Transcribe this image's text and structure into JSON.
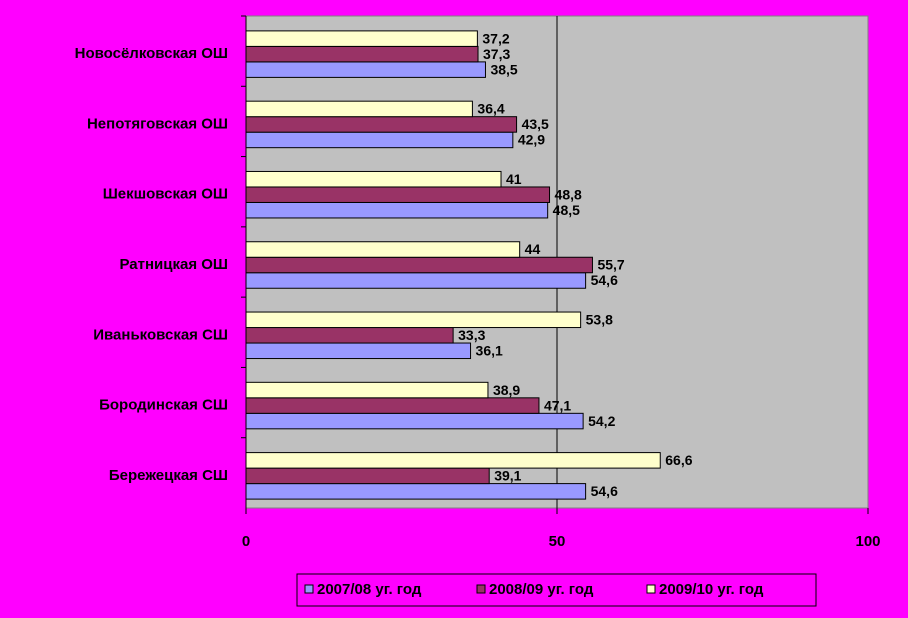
{
  "chart_data": {
    "type": "barh",
    "categories": [
      "Новосёлковская ОШ",
      "Непотяговская ОШ",
      "Шекшовская ОШ",
      "Ратницкая ОШ",
      "Иваньковская СШ",
      "Бородинская СШ",
      "Бережецкая СШ"
    ],
    "series": [
      {
        "name": "2007/08 уг. год",
        "color": "#9999ff",
        "values": [
          38.5,
          42.9,
          48.5,
          54.6,
          36.1,
          54.2,
          54.6
        ],
        "value_labels": [
          "38,5",
          "42,9",
          "48,5",
          "54,6",
          "36,1",
          "54,2",
          "54,6"
        ]
      },
      {
        "name": "2008/09 уг. год",
        "color": "#993366",
        "values": [
          37.3,
          43.5,
          48.8,
          55.7,
          33.3,
          47.1,
          39.1
        ],
        "value_labels": [
          "37,3",
          "43,5",
          "48,8",
          "55,7",
          "33,3",
          "47,1",
          "39,1"
        ]
      },
      {
        "name": "2009/10 уг. год",
        "color": "#ffffcc",
        "values": [
          37.2,
          36.4,
          41,
          44,
          53.8,
          38.9,
          66.6
        ],
        "value_labels": [
          "37,2",
          "36,4",
          "41",
          "44",
          "53,8",
          "38,9",
          "66,6"
        ]
      }
    ],
    "xlim": [
      0,
      100
    ],
    "xticks": [
      0,
      50,
      100
    ],
    "grid": true,
    "legend": "bottom"
  }
}
